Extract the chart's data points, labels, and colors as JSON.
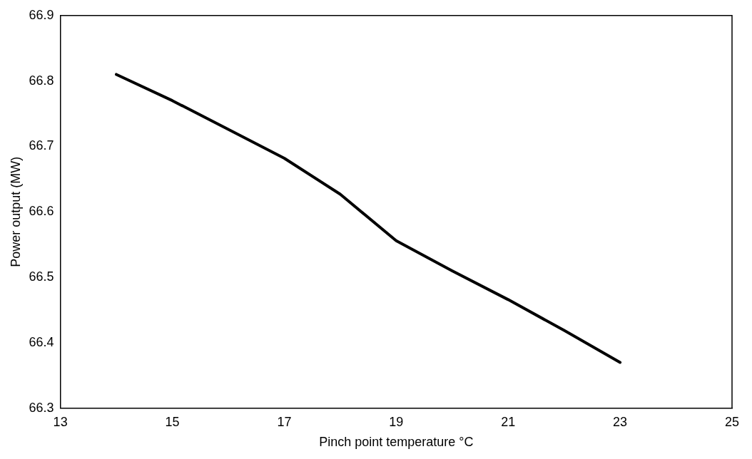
{
  "chart_data": {
    "type": "line",
    "xlabel": "Pinch point temperature °C",
    "ylabel": "Power output (MW)",
    "x": [
      14,
      15,
      16,
      17,
      18,
      19,
      20,
      21,
      22,
      23
    ],
    "series": [
      {
        "color": "#000000",
        "values": [
          66.81,
          66.77,
          66.726,
          66.682,
          66.627,
          66.556,
          66.51,
          66.466,
          66.419,
          66.37
        ]
      }
    ],
    "xlim": [
      13,
      25
    ],
    "xticks": [
      13,
      15,
      17,
      19,
      21,
      23,
      25
    ],
    "ylim": [
      66.3,
      66.9
    ],
    "yticks": [
      66.3,
      66.4,
      66.5,
      66.6,
      66.7,
      66.8,
      66.9
    ],
    "grid": false,
    "legend": false,
    "marker": "none",
    "line_style": "solid"
  }
}
